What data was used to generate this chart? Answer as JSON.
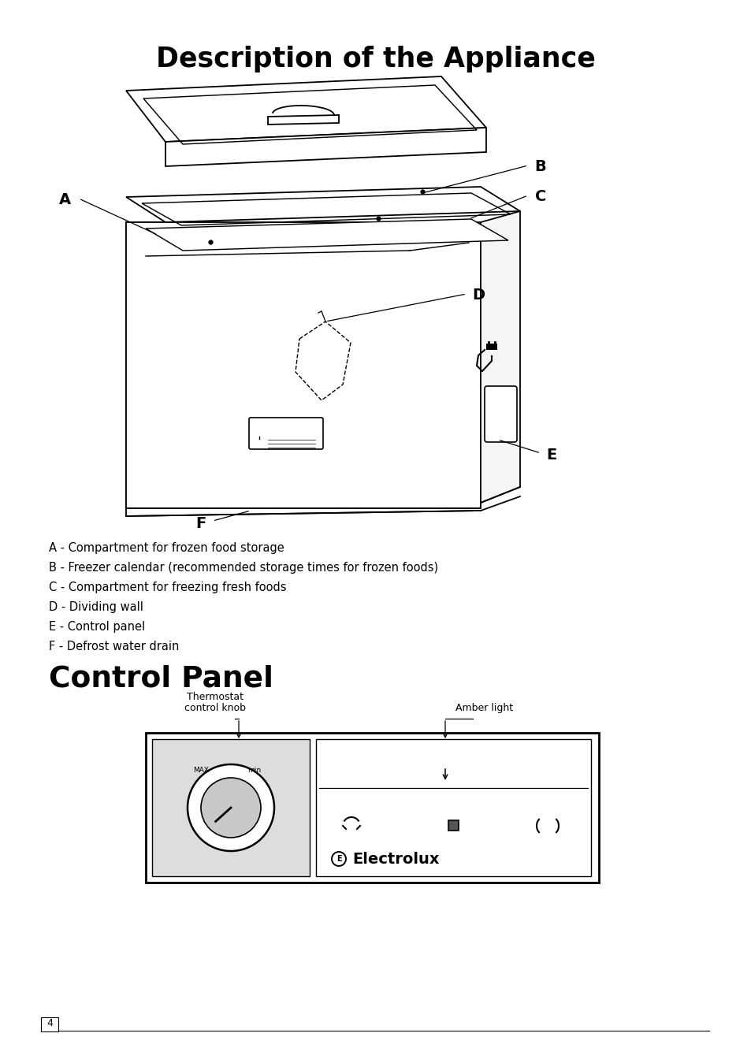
{
  "title": "Description of the Appliance",
  "section2_title": "Control Panel",
  "bg_color": "#ffffff",
  "labels": [
    "A - Compartment for frozen food storage",
    "B - Freezer calendar (recommended storage times for frozen foods)",
    "C - Compartment for freezing fresh foods",
    "D - Dividing wall",
    "E - Control panel",
    "F - Defrost water drain"
  ],
  "page_number": "4",
  "thermostat_label_line1": "Thermostat",
  "thermostat_label_line2": "control knob",
  "amber_label": "Amber light"
}
